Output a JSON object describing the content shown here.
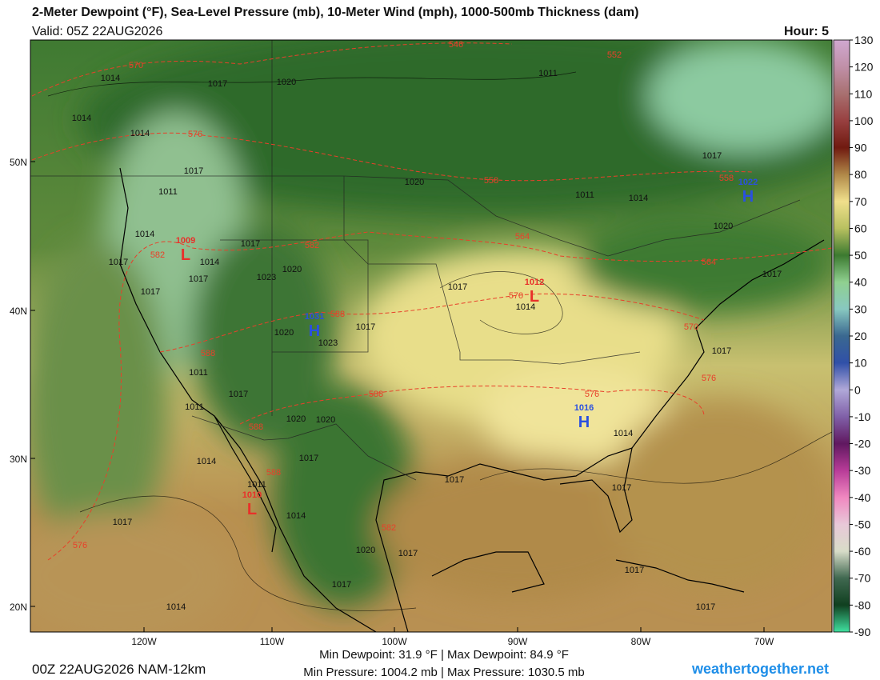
{
  "header": {
    "title": "2-Meter Dewpoint (°F), Sea-Level Pressure (mb), 10-Meter Wind (mph), 1000-500mb Thickness (dam)",
    "valid": "Valid: 05Z 22AUG2026",
    "hour": "Hour: 5"
  },
  "map": {
    "lat_labels": [
      "50N",
      "40N",
      "30N",
      "20N"
    ],
    "lon_labels": [
      "120W",
      "110W",
      "100W",
      "90W",
      "80W",
      "70W"
    ],
    "pressure_labels": [
      "1014",
      "1017",
      "1020",
      "1011",
      "1014",
      "1014",
      "1017",
      "1011",
      "1020",
      "1011",
      "1014",
      "1017",
      "1020",
      "1014",
      "1017",
      "1014",
      "1017",
      "1017",
      "1020",
      "1023",
      "1017",
      "1017",
      "1014",
      "1017",
      "1017",
      "1020",
      "1023",
      "1017",
      "1011",
      "1017",
      "1011",
      "1020",
      "1020",
      "1014",
      "1014",
      "1017",
      "1011",
      "1017",
      "1017",
      "1014",
      "1017",
      "1020",
      "1017",
      "1017",
      "1017",
      "1014",
      "1017"
    ],
    "thickness_labels": [
      "570",
      "546",
      "552",
      "576",
      "558",
      "558",
      "564",
      "582",
      "582",
      "570",
      "564",
      "588",
      "570",
      "588",
      "588",
      "576",
      "576",
      "588",
      "588",
      "582",
      "576"
    ],
    "centers": [
      {
        "symbol": "L",
        "value": "1009",
        "color": "#e8302a"
      },
      {
        "symbol": "H",
        "value": "1031",
        "color": "#2a50e0"
      },
      {
        "symbol": "L",
        "value": "1012",
        "color": "#e8302a"
      },
      {
        "symbol": "H",
        "value": "1016",
        "color": "#2a50e0"
      },
      {
        "symbol": "H",
        "value": "1022",
        "color": "#2a50e0"
      },
      {
        "symbol": "L",
        "value": "1010",
        "color": "#e8302a"
      }
    ]
  },
  "colorbar": {
    "ticks": [
      130,
      120,
      110,
      100,
      90,
      80,
      70,
      60,
      50,
      40,
      30,
      20,
      10,
      0,
      -10,
      -20,
      -30,
      -40,
      -50,
      -60,
      -70,
      -80,
      -90
    ],
    "colors": [
      "#d0a8d0",
      "#c090a8",
      "#a87070",
      "#984040",
      "#701a10",
      "#b08848",
      "#f0e08c",
      "#b8c060",
      "#3c7a30",
      "#90d090",
      "#88c8c0",
      "#3a6890",
      "#3050a8",
      "#b0a8d8",
      "#8060a8",
      "#601860",
      "#b83c98",
      "#f088c0",
      "#e8c8d8",
      "#d8dcc8",
      "#406850",
      "#104020",
      "#40e0a0"
    ]
  },
  "footer": {
    "model": "00Z 22AUG2026 NAM-12km",
    "dewpoint": "Min Dewpoint:  31.9 °F | Max Dewpoint:  84.9 °F",
    "pressure": "Min Pressure: 1004.2 mb | Max Pressure: 1030.5 mb",
    "site": "weathertogether.net"
  }
}
